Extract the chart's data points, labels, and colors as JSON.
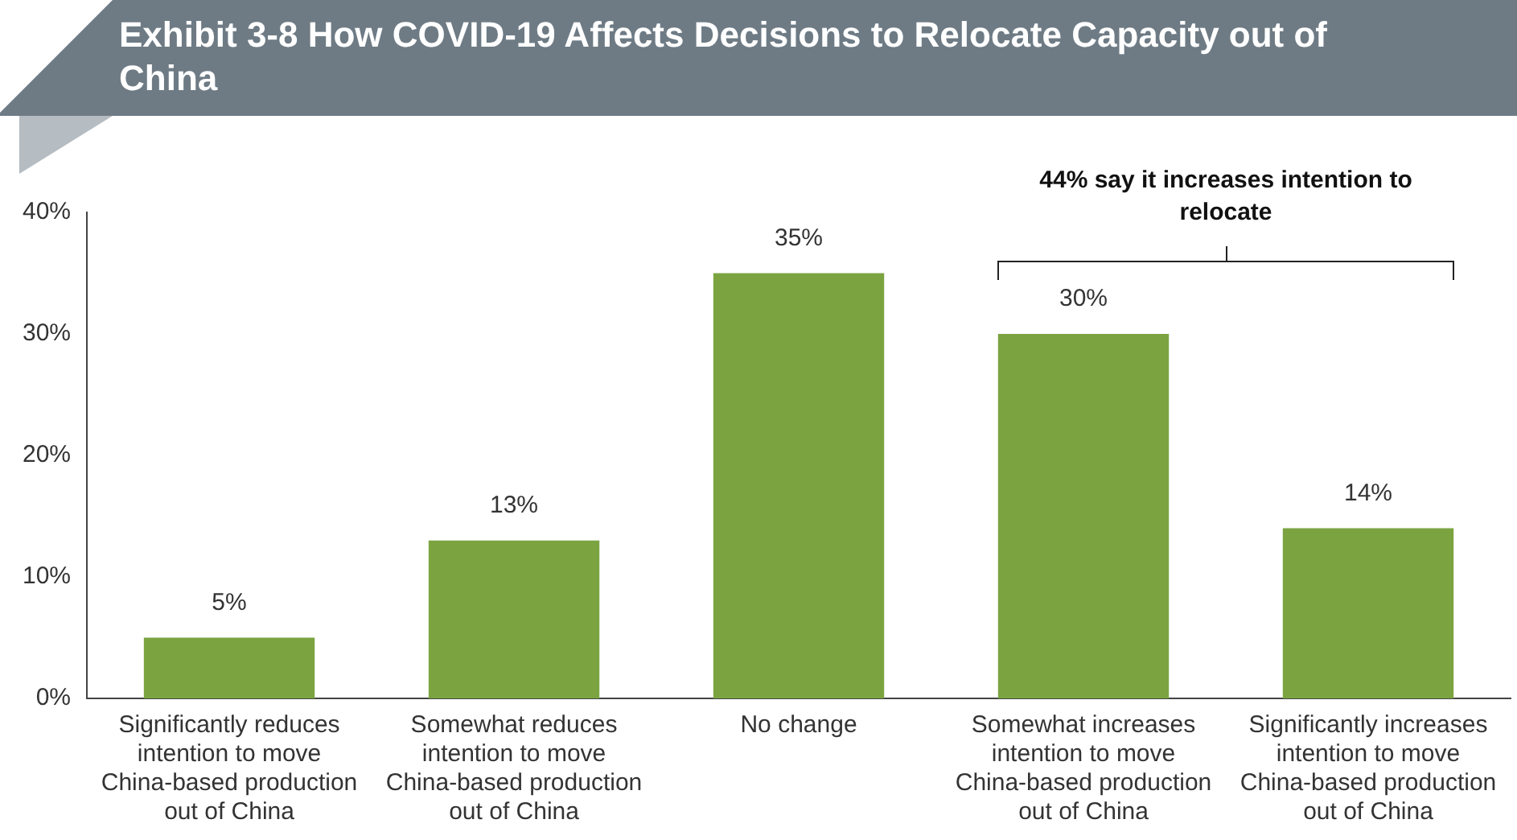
{
  "chart_data": {
    "type": "bar",
    "title": "Exhibit 3-8  How COVID-19 Affects Decisions to Relocate Capacity out of China",
    "categories": [
      "Significantly reduces intention to move China-based production out of China",
      "Somewhat reduces intention to move China-based production out of China",
      "No change",
      "Somewhat increases intention to move China-based production out of China",
      "Significantly increases intention to move China-based production out of China"
    ],
    "values": [
      5,
      13,
      35,
      30,
      14
    ],
    "color": "#7ba441",
    "ylim": [
      0,
      40
    ],
    "yticks": [
      {
        "value": 0,
        "label": "0%"
      },
      {
        "value": 10,
        "label": "10%"
      },
      {
        "value": 20,
        "label": "20%"
      },
      {
        "value": 30,
        "label": "30%"
      },
      {
        "value": 40,
        "label": "40%"
      }
    ],
    "value_labels": [
      "5%",
      "13%",
      "35%",
      "30%",
      "14%"
    ],
    "grid": false,
    "legend": false,
    "annotations": [
      "44% say it increases intention to relocate"
    ]
  }
}
